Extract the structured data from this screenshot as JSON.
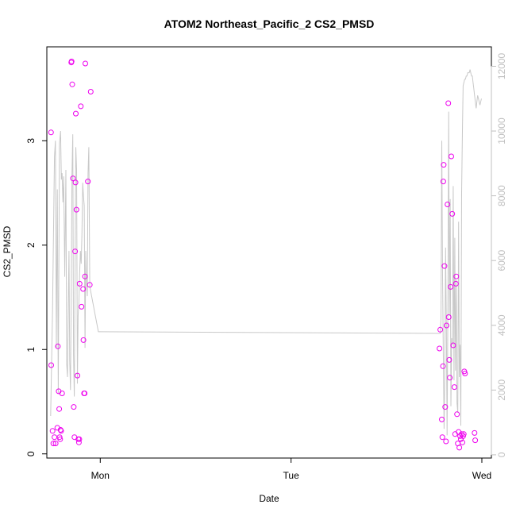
{
  "chart_data": {
    "type": "scatter",
    "title": "ATOM2 Northeast_Pacific_2 CS2_PMSD",
    "xlabel": "Date",
    "ylabel": "CS2_PMSD",
    "x_ticks": [
      "Mon",
      "Tue",
      "Wed"
    ],
    "y_ticks": [
      0,
      1,
      2,
      3
    ],
    "y_right_ticks": [
      0,
      2000,
      4000,
      6000,
      8000,
      10000,
      12000
    ],
    "xlim_days": [
      -0.28,
      2.05
    ],
    "ylim": [
      -0.04,
      3.9
    ],
    "y_right_lim": [
      -100,
      12600
    ],
    "colors": {
      "points": "#ee00ee",
      "line": "#c8c8c8",
      "right_axis": "#c0c0c0"
    },
    "series": [
      {
        "type": "scatter",
        "axis": "left",
        "x_days": [
          -0.258,
          -0.257,
          -0.25,
          -0.246,
          -0.24,
          -0.234,
          -0.225,
          -0.222,
          -0.218,
          -0.215,
          -0.213,
          -0.21,
          -0.208,
          -0.205,
          -0.2,
          -0.152,
          -0.15,
          -0.147,
          -0.143,
          -0.139,
          -0.135,
          -0.132,
          -0.13,
          -0.128,
          -0.125,
          -0.12,
          -0.115,
          -0.112,
          -0.11,
          -0.108,
          -0.102,
          -0.098,
          -0.09,
          -0.088,
          -0.085,
          -0.082,
          -0.08,
          -0.078,
          -0.065,
          -0.055,
          -0.05,
          1.778,
          1.782,
          1.79,
          1.793,
          1.796,
          1.798,
          1.8,
          1.804,
          1.808,
          1.812,
          1.815,
          1.82,
          1.824,
          1.826,
          1.829,
          1.832,
          1.836,
          1.84,
          1.845,
          1.85,
          1.856,
          1.86,
          1.864,
          1.866,
          1.87,
          1.874,
          1.878,
          1.882,
          1.886,
          1.89,
          1.894,
          1.898,
          1.902,
          1.905,
          1.908,
          1.912,
          1.962,
          1.965
        ],
        "y": [
          3.08,
          0.85,
          0.22,
          0.1,
          0.16,
          0.1,
          0.25,
          1.03,
          0.6,
          0.43,
          0.16,
          0.14,
          0.23,
          0.22,
          0.58,
          3.75,
          3.76,
          3.54,
          2.64,
          0.45,
          0.16,
          1.94,
          2.6,
          3.26,
          2.34,
          0.75,
          0.14,
          0.11,
          0.14,
          1.63,
          3.33,
          1.41,
          1.58,
          1.09,
          0.58,
          0.58,
          1.7,
          3.74,
          2.61,
          1.62,
          3.47,
          1.01,
          1.19,
          0.33,
          0.16,
          0.84,
          2.61,
          2.77,
          1.8,
          0.45,
          0.12,
          1.23,
          2.39,
          3.36,
          1.31,
          0.9,
          0.73,
          1.6,
          2.85,
          2.3,
          1.04,
          0.64,
          0.19,
          1.63,
          1.7,
          0.38,
          0.1,
          0.21,
          0.06,
          0.17,
          0.14,
          0.19,
          0.11,
          0.17,
          0.19,
          0.79,
          0.77,
          0.2,
          0.13
        ]
      },
      {
        "type": "line",
        "axis": "right",
        "x_days": [
          -0.26,
          -0.25,
          -0.24,
          -0.235,
          -0.23,
          -0.225,
          -0.22,
          -0.214,
          -0.208,
          -0.204,
          -0.2,
          -0.196,
          -0.192,
          -0.186,
          -0.18,
          -0.176,
          -0.172,
          -0.168,
          -0.164,
          -0.16,
          -0.156,
          -0.152,
          -0.148,
          -0.144,
          -0.14,
          -0.136,
          -0.132,
          -0.128,
          -0.124,
          -0.12,
          -0.116,
          -0.112,
          -0.108,
          -0.104,
          -0.1,
          -0.096,
          -0.092,
          -0.088,
          -0.084,
          -0.08,
          -0.076,
          -0.072,
          -0.068,
          -0.064,
          -0.06,
          -0.055,
          -0.01,
          0,
          1.78,
          1.782,
          1.786,
          1.79,
          1.794,
          1.798,
          1.802,
          1.806,
          1.81,
          1.814,
          1.818,
          1.822,
          1.826,
          1.83,
          1.834,
          1.838,
          1.842,
          1.846,
          1.85,
          1.854,
          1.858,
          1.862,
          1.866,
          1.87,
          1.874,
          1.878,
          1.882,
          1.886,
          1.89,
          1.894,
          1.898,
          1.902,
          1.906,
          1.91,
          1.914,
          1.918,
          1.922,
          1.926,
          1.93,
          1.934,
          1.938,
          1.942,
          1.946,
          1.95,
          1.954,
          1.958,
          1.962,
          1.966,
          1.97,
          1.974,
          1.978,
          1.982,
          1.986,
          1.99,
          1.994,
          1.998
        ],
        "y": [
          1200,
          4500,
          9200,
          9700,
          3300,
          8200,
          1900,
          9600,
          10000,
          8500,
          8700,
          7800,
          8600,
          5500,
          8800,
          2800,
          2400,
          4300,
          6300,
          2900,
          2000,
          5100,
          8700,
          9900,
          3100,
          1800,
          5900,
          9500,
          8800,
          2200,
          4300,
          4700,
          5600,
          6300,
          5900,
          6800,
          8400,
          8000,
          7700,
          3300,
          6300,
          5300,
          4900,
          8700,
          9500,
          5200,
          3800,
          3800,
          3750,
          3750,
          4200,
          9700,
          5500,
          3200,
          800,
          2700,
          6400,
          3900,
          600,
          4600,
          10600,
          4300,
          7900,
          1500,
          3600,
          3400,
          8300,
          2300,
          6700,
          2600,
          5400,
          1600,
          1300,
          7200,
          2400,
          3400,
          900,
          8100,
          10000,
          11400,
          11500,
          11600,
          11600,
          11700,
          11700,
          11800,
          11800,
          11800,
          11900,
          11800,
          11700,
          11700,
          11500,
          11300,
          11100,
          10900,
          10700,
          10900,
          11100,
          11000,
          10900,
          10800,
          10900,
          11000
        ]
      }
    ]
  }
}
